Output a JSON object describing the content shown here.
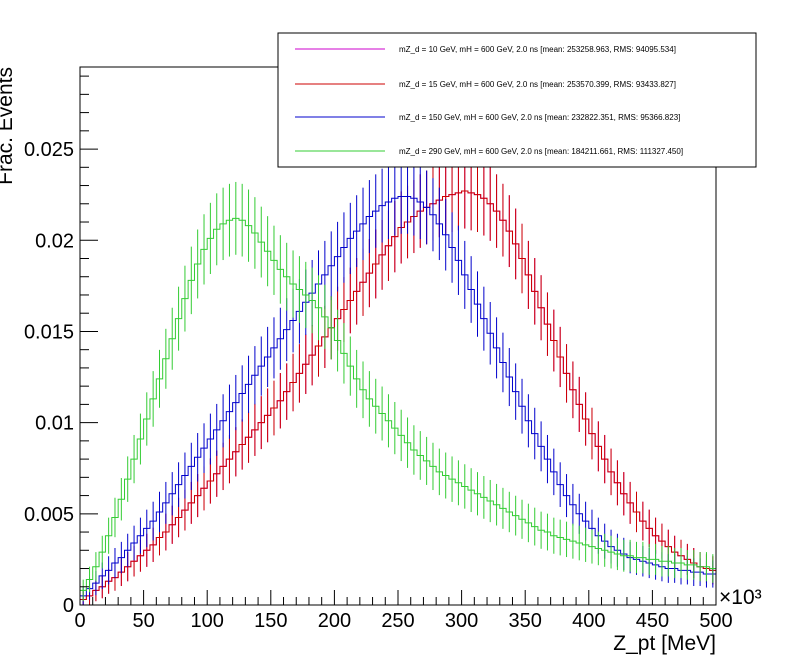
{
  "chart_data": {
    "type": "line",
    "style": "histogram-with-error-bars",
    "title": "",
    "xlabel": "Z_pt [MeV]",
    "ylabel": "Frac. Events",
    "x_multiplier_label": "×10³",
    "xlim": [
      0,
      500
    ],
    "ylim": [
      0,
      0.0295
    ],
    "x_ticks": [
      "0",
      "50",
      "100",
      "150",
      "200",
      "250",
      "300",
      "350",
      "400",
      "450",
      "500"
    ],
    "y_ticks": [
      "0",
      "0.005",
      "0.01",
      "0.015",
      "0.02",
      "0.025"
    ],
    "bin_width": 5,
    "series": [
      {
        "name": "mZ_d = 10 GeV, mH = 600 GeV, 2.0 ns [mean: 253258.963, RMS: 94095.534]",
        "color": "#cc00cc",
        "values": [
          0.0003,
          0.0005,
          0.0008,
          0.001,
          0.0013,
          0.0015,
          0.0018,
          0.0021,
          0.0024,
          0.0027,
          0.003,
          0.0033,
          0.0037,
          0.004,
          0.0044,
          0.0048,
          0.0052,
          0.0056,
          0.006,
          0.0064,
          0.0068,
          0.0072,
          0.0076,
          0.008,
          0.0084,
          0.0088,
          0.0092,
          0.0096,
          0.01,
          0.0104,
          0.0108,
          0.0112,
          0.0117,
          0.0122,
          0.0127,
          0.0132,
          0.0137,
          0.0142,
          0.0147,
          0.0152,
          0.0157,
          0.0162,
          0.0167,
          0.0172,
          0.0177,
          0.0182,
          0.0187,
          0.0192,
          0.0197,
          0.0202,
          0.0207,
          0.021,
          0.0213,
          0.0216,
          0.0218,
          0.022,
          0.0222,
          0.0224,
          0.0225,
          0.0226,
          0.0227,
          0.0226,
          0.0225,
          0.0223,
          0.022,
          0.0216,
          0.0211,
          0.0205,
          0.0198,
          0.019,
          0.0181,
          0.0172,
          0.0163,
          0.0154,
          0.0145,
          0.0136,
          0.0127,
          0.0118,
          0.011,
          0.0102,
          0.0094,
          0.0087,
          0.008,
          0.0073,
          0.0067,
          0.0061,
          0.0056,
          0.0051,
          0.0046,
          0.0042,
          0.0038,
          0.0035,
          0.0032,
          0.0029,
          0.0027,
          0.0025,
          0.0023,
          0.0021,
          0.002,
          0.0019
        ]
      },
      {
        "name": "mZ_d = 15 GeV, mH = 600 GeV, 2.0 ns [mean: 253570.399, RMS: 93433.827]",
        "color": "#cc0000",
        "values": [
          0.0003,
          0.0005,
          0.0008,
          0.001,
          0.0013,
          0.0015,
          0.0018,
          0.0021,
          0.0024,
          0.0027,
          0.003,
          0.0033,
          0.0037,
          0.004,
          0.0044,
          0.0048,
          0.0052,
          0.0056,
          0.006,
          0.0064,
          0.0068,
          0.0072,
          0.0076,
          0.008,
          0.0084,
          0.0088,
          0.0092,
          0.0096,
          0.01,
          0.0104,
          0.0108,
          0.0112,
          0.0117,
          0.0122,
          0.0127,
          0.0132,
          0.0137,
          0.0142,
          0.0147,
          0.0152,
          0.0157,
          0.0162,
          0.0167,
          0.0172,
          0.0177,
          0.0182,
          0.0187,
          0.0192,
          0.0197,
          0.0202,
          0.0207,
          0.021,
          0.0213,
          0.0216,
          0.0218,
          0.022,
          0.0222,
          0.0224,
          0.0225,
          0.0226,
          0.0227,
          0.0226,
          0.0225,
          0.0223,
          0.022,
          0.0216,
          0.0211,
          0.0205,
          0.0198,
          0.019,
          0.0181,
          0.0172,
          0.0163,
          0.0154,
          0.0145,
          0.0136,
          0.0127,
          0.0118,
          0.011,
          0.0102,
          0.0094,
          0.0087,
          0.008,
          0.0073,
          0.0067,
          0.0061,
          0.0056,
          0.0051,
          0.0046,
          0.0042,
          0.0038,
          0.0035,
          0.0032,
          0.0029,
          0.0027,
          0.0025,
          0.0023,
          0.0021,
          0.002,
          0.0019
        ]
      },
      {
        "name": "mZ_d = 150 GeV, mH = 600 GeV, 2.0 ns [mean: 232822.351, RMS: 95366.823]",
        "color": "#0000cc",
        "values": [
          0.0005,
          0.0009,
          0.0012,
          0.0016,
          0.0019,
          0.0023,
          0.0026,
          0.003,
          0.0034,
          0.0038,
          0.0042,
          0.0046,
          0.0051,
          0.0056,
          0.0061,
          0.0066,
          0.0071,
          0.0076,
          0.0081,
          0.0086,
          0.0091,
          0.0096,
          0.0101,
          0.0106,
          0.0111,
          0.0116,
          0.0121,
          0.0126,
          0.0131,
          0.0136,
          0.0141,
          0.0146,
          0.0151,
          0.0156,
          0.0161,
          0.0166,
          0.0171,
          0.0176,
          0.0181,
          0.0186,
          0.0191,
          0.0196,
          0.0201,
          0.0205,
          0.0209,
          0.0213,
          0.0216,
          0.0219,
          0.0221,
          0.0223,
          0.0224,
          0.0224,
          0.0223,
          0.0221,
          0.0218,
          0.0214,
          0.0209,
          0.0203,
          0.0196,
          0.0189,
          0.0181,
          0.0173,
          0.0165,
          0.0157,
          0.0149,
          0.0141,
          0.0133,
          0.0125,
          0.0117,
          0.0109,
          0.0101,
          0.0094,
          0.0087,
          0.008,
          0.0073,
          0.0066,
          0.006,
          0.0055,
          0.005,
          0.0046,
          0.0042,
          0.0038,
          0.0035,
          0.0032,
          0.003,
          0.0028,
          0.0026,
          0.0025,
          0.0024,
          0.0023,
          0.0022,
          0.0021,
          0.002,
          0.002,
          0.0019,
          0.0019,
          0.0018,
          0.0018,
          0.0017,
          0.0017
        ]
      },
      {
        "name": "mZ_d = 290 GeV, mH = 600 GeV, 2.0 ns [mean: 184211.661, RMS: 111327.450]",
        "color": "#33cc33",
        "values": [
          0.0008,
          0.0014,
          0.0021,
          0.0029,
          0.0038,
          0.0048,
          0.0058,
          0.0069,
          0.008,
          0.0091,
          0.0102,
          0.0113,
          0.0124,
          0.0135,
          0.0146,
          0.0157,
          0.0168,
          0.0178,
          0.0187,
          0.0195,
          0.0201,
          0.0206,
          0.0209,
          0.0211,
          0.0212,
          0.0211,
          0.0208,
          0.0204,
          0.0199,
          0.0194,
          0.0189,
          0.0184,
          0.018,
          0.0176,
          0.0173,
          0.017,
          0.0167,
          0.0163,
          0.0158,
          0.0152,
          0.0145,
          0.0138,
          0.0131,
          0.0124,
          0.0118,
          0.0113,
          0.0109,
          0.0105,
          0.0101,
          0.0097,
          0.0093,
          0.0089,
          0.0085,
          0.0082,
          0.0079,
          0.0076,
          0.0073,
          0.0071,
          0.0069,
          0.0067,
          0.0065,
          0.0063,
          0.0061,
          0.0059,
          0.0057,
          0.0055,
          0.0053,
          0.0051,
          0.0049,
          0.0047,
          0.0045,
          0.0043,
          0.0041,
          0.004,
          0.0038,
          0.0037,
          0.0036,
          0.0035,
          0.0034,
          0.0033,
          0.0032,
          0.0031,
          0.003,
          0.0029,
          0.0028,
          0.0027,
          0.0027,
          0.0026,
          0.0026,
          0.0025,
          0.0025,
          0.0024,
          0.0024,
          0.0023,
          0.0023,
          0.0022,
          0.0022,
          0.0021,
          0.0021,
          0.002
        ]
      }
    ]
  }
}
